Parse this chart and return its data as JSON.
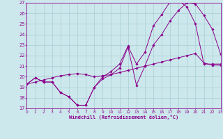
{
  "xlabel": "Windchill (Refroidissement éolien,°C)",
  "bg_color": "#cce8ec",
  "line_color": "#8b008b",
  "grid_color": "#a8cdd4",
  "xmin": 0,
  "xmax": 23,
  "ymin": 17,
  "ymax": 27,
  "curve1_x": [
    0,
    1,
    2,
    3,
    4,
    5,
    6,
    7,
    8,
    9,
    10,
    11,
    12,
    13,
    14,
    15,
    16,
    17,
    18,
    19,
    20,
    21,
    22,
    23
  ],
  "curve1_y": [
    19.3,
    19.9,
    19.5,
    19.5,
    18.5,
    18.1,
    17.3,
    17.3,
    19.0,
    19.8,
    20.2,
    20.8,
    22.8,
    19.2,
    21.0,
    23.0,
    24.0,
    25.3,
    26.3,
    27.0,
    26.9,
    25.8,
    24.5,
    22.1
  ],
  "curve2_x": [
    0,
    1,
    2,
    3,
    4,
    5,
    6,
    7,
    8,
    9,
    10,
    11,
    12,
    13,
    14,
    15,
    16,
    17,
    18,
    19,
    20,
    21,
    22,
    23
  ],
  "curve2_y": [
    19.3,
    19.9,
    19.5,
    19.5,
    18.5,
    18.1,
    17.3,
    17.3,
    19.0,
    20.0,
    20.5,
    21.2,
    22.9,
    21.2,
    22.3,
    24.8,
    25.9,
    27.1,
    27.2,
    26.6,
    25.0,
    21.2,
    21.2,
    21.2
  ],
  "curve3_x": [
    0,
    1,
    2,
    3,
    4,
    5,
    6,
    7,
    8,
    9,
    10,
    11,
    12,
    13,
    14,
    15,
    16,
    17,
    18,
    19,
    20,
    21,
    22,
    23
  ],
  "curve3_y": [
    19.3,
    19.5,
    19.7,
    19.9,
    20.1,
    20.2,
    20.3,
    20.2,
    20.0,
    20.1,
    20.2,
    20.4,
    20.6,
    20.8,
    21.0,
    21.2,
    21.4,
    21.6,
    21.8,
    22.0,
    22.2,
    21.3,
    21.1,
    21.1
  ]
}
